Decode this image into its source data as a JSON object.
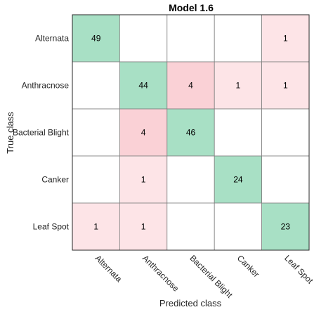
{
  "chart_data": {
    "type": "heatmap",
    "title": "Model 1.6",
    "xlabel": "Predicted class",
    "ylabel": "True class",
    "classes": [
      "Alternata",
      "Anthracnose",
      "Bacterial Blight",
      "Canker",
      "Leaf Spot"
    ],
    "matrix": [
      [
        49,
        0,
        0,
        0,
        1
      ],
      [
        0,
        44,
        4,
        1,
        1
      ],
      [
        0,
        4,
        46,
        0,
        0
      ],
      [
        0,
        1,
        0,
        24,
        0
      ],
      [
        1,
        1,
        0,
        0,
        23
      ]
    ],
    "colors": {
      "diagonal": "#a8e0c5",
      "diagonal_light": "#d4efe2",
      "offdiag_strong": "#fad1d6",
      "offdiag_light": "#fde4e7",
      "empty": "#ffffff",
      "grid": "#7f7f7f"
    }
  }
}
